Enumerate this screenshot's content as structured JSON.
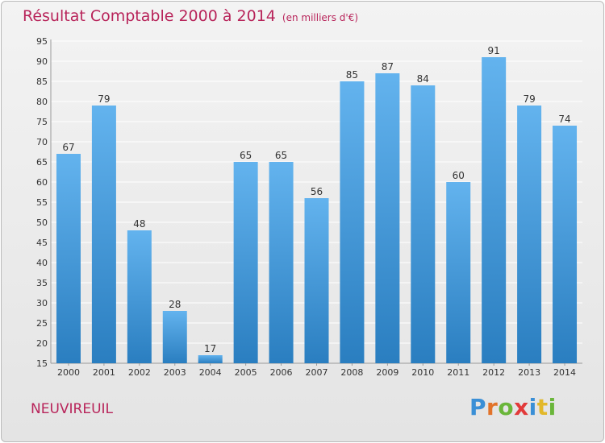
{
  "title": "Résultat Comptable 2000 à 2014",
  "unit": "(en milliers d'€)",
  "commune": "NEUVIREUIL",
  "logo": {
    "text": "Proxiti",
    "letter_colors": [
      "#3a8fd6",
      "#e2732a",
      "#6ab63a",
      "#e23a3a",
      "#3a8fd6",
      "#e2b82a",
      "#6ab63a"
    ]
  },
  "colors": {
    "title": "#b8245a",
    "bar_top": "#63b3ee",
    "bar_bottom": "#2a7ec0",
    "grid": "#ffffff",
    "axis_text": "#333333"
  },
  "chart_data": {
    "type": "bar",
    "title": "Résultat Comptable 2000 à 2014",
    "categories": [
      "2000",
      "2001",
      "2002",
      "2003",
      "2004",
      "2005",
      "2006",
      "2007",
      "2008",
      "2009",
      "2010",
      "2011",
      "2012",
      "2013",
      "2014"
    ],
    "values": [
      67,
      79,
      48,
      28,
      17,
      65,
      65,
      56,
      85,
      87,
      84,
      60,
      91,
      79,
      74
    ],
    "ylim": [
      15,
      95
    ],
    "ytick_step": 5,
    "grid": true,
    "data_labels": true
  }
}
